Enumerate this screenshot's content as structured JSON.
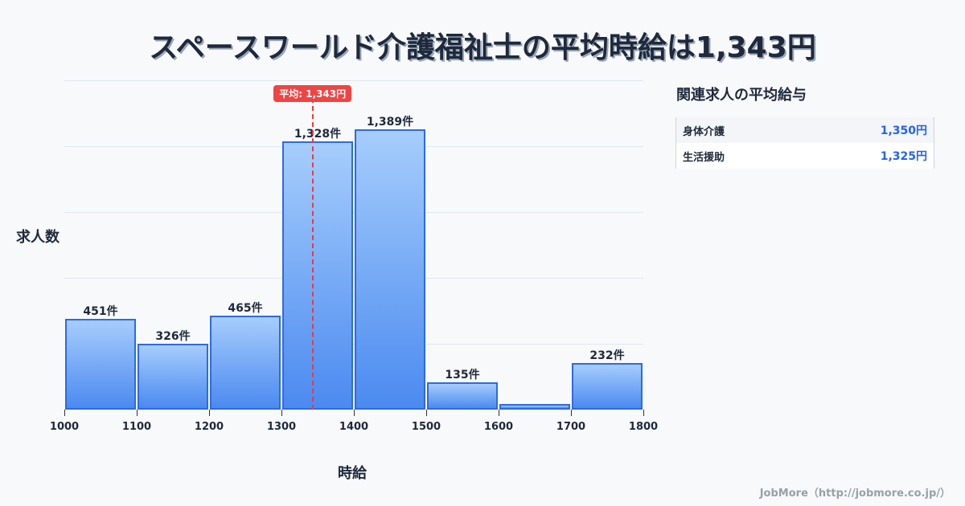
{
  "title": "スペースワールド介護福祉士の平均時給は1,343円",
  "chart_data": {
    "type": "bar",
    "title": "スペースワールド介護福祉士の平均時給は1,343円",
    "xlabel": "時給",
    "ylabel": "求人数",
    "categories": [
      "1000-1100",
      "1100-1200",
      "1200-1300",
      "1300-1400",
      "1400-1500",
      "1500-1600",
      "1600-1700",
      "1700-1800"
    ],
    "bin_edges": [
      1000,
      1100,
      1200,
      1300,
      1400,
      1500,
      1600,
      1700,
      1800
    ],
    "values": [
      451,
      326,
      465,
      1328,
      1389,
      135,
      28,
      232
    ],
    "value_labels": [
      "451件",
      "326件",
      "465件",
      "1,328件",
      "1,389件",
      "135件",
      "",
      "232件"
    ],
    "x_tick_labels": [
      "1000",
      "1100",
      "1200",
      "1300",
      "1400",
      "1500",
      "1600",
      "1700",
      "1800"
    ],
    "ylim": [
      0,
      1630
    ],
    "grid": true,
    "mean": 1343,
    "mean_label": "平均: 1,343円",
    "colors": {
      "bar_border": "#2f6ae0",
      "bar_top": "#a6cdfc",
      "bar_bottom": "#4b8af0",
      "mean_line": "#e53e3e"
    }
  },
  "sidebar": {
    "title": "関連求人の平均給与",
    "rows": [
      {
        "label": "身体介護",
        "value": "1,350円"
      },
      {
        "label": "生活援助",
        "value": "1,325円"
      }
    ]
  },
  "footer": "JobMore（http://jobmore.co.jp/）"
}
